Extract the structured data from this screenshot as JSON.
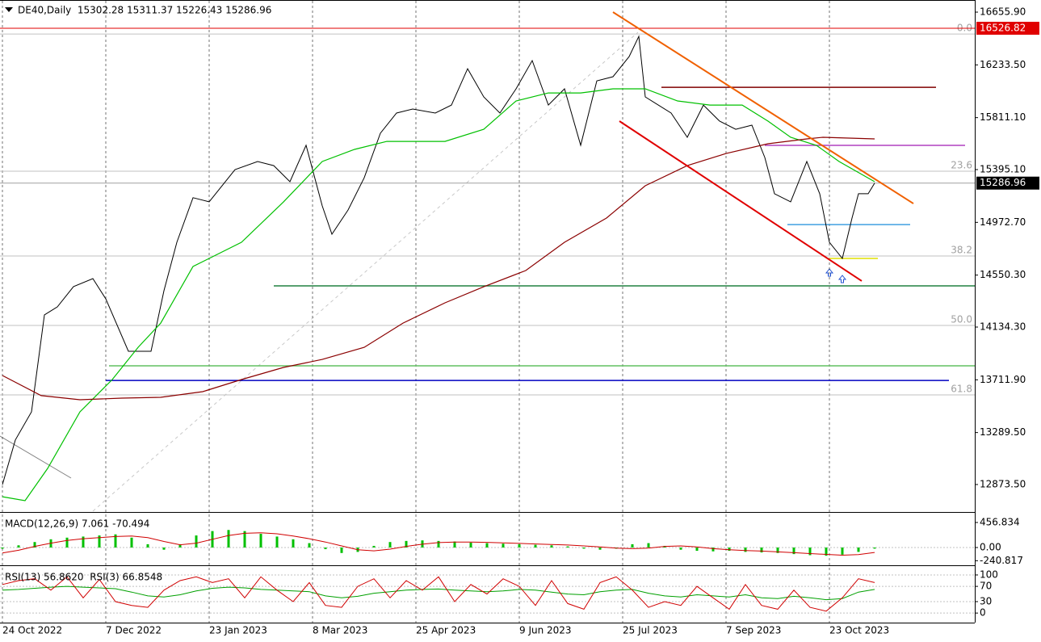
{
  "chart_data": [
    {
      "type": "line",
      "title": "DE40,Daily  15302.28 15311.37 15226.43 15286.96",
      "xlim": [
        0,
        301
      ],
      "xticks": [
        {
          "value": 0,
          "label": "24 Oct 2022"
        },
        {
          "value": 32,
          "label": "7 Dec 2022"
        },
        {
          "value": 64,
          "label": "23 Jan 2023"
        },
        {
          "value": 96,
          "label": "8 Mar 2023"
        },
        {
          "value": 128,
          "label": "25 Apr 2023"
        },
        {
          "value": 160,
          "label": "9 Jun 2023"
        },
        {
          "value": 192,
          "label": "25 Jul 2023"
        },
        {
          "value": 224,
          "label": "7 Sep 2023"
        },
        {
          "value": 256,
          "label": "23 Oct 2023"
        }
      ],
      "ylim": [
        12660,
        16753
      ],
      "yticks": [
        {
          "value": 16655.9,
          "label": "16655.90"
        },
        {
          "value": 16233.5,
          "label": "16233.50"
        },
        {
          "value": 15811.1,
          "label": "15811.10"
        },
        {
          "value": 15395.1,
          "label": "15395.10"
        },
        {
          "value": 14972.7,
          "label": "14972.70"
        },
        {
          "value": 14550.3,
          "label": "14550.30"
        },
        {
          "value": 14134.3,
          "label": "14134.30"
        },
        {
          "value": 13711.9,
          "label": "13711.90"
        },
        {
          "value": 13289.5,
          "label": "13289.50"
        },
        {
          "value": 12873.5,
          "label": "12873.50"
        }
      ],
      "series": [
        {
          "color": "#000000",
          "x": [
            0,
            4,
            9,
            13,
            17,
            22,
            28,
            32,
            39,
            46,
            50,
            54,
            59,
            64,
            72,
            79,
            84,
            89,
            94,
            99,
            102,
            107,
            112,
            117,
            122,
            127,
            134,
            139,
            144,
            149,
            154,
            159,
            164,
            169,
            174,
            179,
            184,
            189,
            194,
            197,
            199,
            207,
            212,
            217,
            222,
            227,
            232,
            236,
            239,
            244,
            249,
            253,
            256,
            260,
            263,
            265,
            268,
            270
          ],
          "values": [
            12873,
            13230,
            13455,
            14232,
            14296,
            14458,
            14522,
            14360,
            13940,
            13940,
            14425,
            14813,
            15170,
            15137,
            15395,
            15460,
            15427,
            15298,
            15590,
            15105,
            14878,
            15072,
            15330,
            15686,
            15848,
            15880,
            15848,
            15912,
            16203,
            15977,
            15848,
            16042,
            16268,
            15912,
            16042,
            15590,
            16106,
            16139,
            16300,
            16462,
            15977,
            15848,
            15654,
            15912,
            15783,
            15718,
            15751,
            15492,
            15202,
            15137,
            15460,
            15202,
            14813,
            14684,
            15007,
            15202,
            15202,
            15287
          ]
        },
        {
          "color": "#00c000",
          "x": [
            0,
            7,
            14,
            24,
            34,
            42,
            49,
            59,
            74,
            87,
            99,
            109,
            119,
            137,
            149,
            159,
            169,
            179,
            189,
            199,
            209,
            219,
            229,
            237,
            244,
            252,
            259,
            270
          ],
          "values": [
            12776,
            12744,
            13003,
            13455,
            13714,
            13972,
            14166,
            14619,
            14813,
            15136,
            15460,
            15557,
            15621,
            15621,
            15718,
            15945,
            16009,
            16009,
            16042,
            16042,
            15945,
            15912,
            15912,
            15783,
            15654,
            15589,
            15460,
            15298
          ]
        },
        {
          "color": "#8b0000",
          "x": [
            0,
            12,
            24,
            37,
            49,
            62,
            74,
            87,
            99,
            112,
            124,
            137,
            149,
            162,
            174,
            187,
            199,
            212,
            224,
            237,
            249,
            254,
            270
          ],
          "values": [
            13746,
            13585,
            13552,
            13565,
            13572,
            13617,
            13714,
            13811,
            13875,
            13972,
            14166,
            14328,
            14457,
            14587,
            14813,
            15007,
            15266,
            15427,
            15524,
            15602,
            15641,
            15654,
            15641
          ]
        }
      ],
      "hlines": [
        {
          "value": 16526.82,
          "color": "#e00000",
          "box": "#e00000"
        },
        {
          "value": 15286.96,
          "color": "#a0a0a0",
          "box": "#000000"
        },
        {
          "value": 16054,
          "color": "#800000",
          "from": 204,
          "to": 289
        },
        {
          "value": 15589,
          "color": "#b040c0",
          "from": 236,
          "to": 298
        },
        {
          "value": 14955,
          "color": "#40a0e0",
          "from": 243,
          "to": 281
        },
        {
          "value": 14684,
          "color": "#e0e000",
          "from": 256,
          "to": 271
        },
        {
          "value": 14464,
          "color": "#208040",
          "from": 84,
          "to": 301
        },
        {
          "value": 13824,
          "color": "#60c060",
          "from": 33,
          "to": 301
        },
        {
          "value": 13707,
          "color": "#0000c0",
          "from": 32,
          "to": 293
        }
      ],
      "fibo": [
        {
          "label": "0.0",
          "value": 16481
        },
        {
          "label": "23.6",
          "value": 15382
        },
        {
          "label": "38.2",
          "value": 14703
        },
        {
          "label": "50.0",
          "value": 14147
        },
        {
          "label": "61.8",
          "value": 13591
        }
      ],
      "trendlines": [
        {
          "color": "#f06000",
          "points": [
            [
              189,
              16656
            ],
            [
              282,
              15123
            ]
          ]
        },
        {
          "color": "#e00000",
          "points": [
            [
              191,
              15783
            ],
            [
              266,
              14503
            ]
          ]
        }
      ]
    },
    {
      "type": "macd",
      "title": "MACD(12,26,9) 7.061 -70.494",
      "ylim": [
        -280,
        619
      ],
      "yticks": [
        {
          "value": 456.834,
          "label": "456.834"
        },
        {
          "value": 0,
          "label": "0.00"
        },
        {
          "value": -240.817,
          "label": "-240.817"
        }
      ],
      "x": [
        0,
        5,
        10,
        15,
        20,
        25,
        30,
        35,
        40,
        45,
        50,
        55,
        60,
        65,
        70,
        75,
        80,
        85,
        90,
        95,
        100,
        105,
        110,
        115,
        120,
        125,
        130,
        135,
        140,
        145,
        150,
        155,
        160,
        165,
        170,
        175,
        180,
        185,
        190,
        195,
        200,
        205,
        210,
        215,
        220,
        225,
        230,
        235,
        240,
        245,
        250,
        255,
        260,
        265,
        270
      ],
      "series": [
        {
          "color": "#00c000",
          "values": [
            -20,
            40,
            100,
            150,
            180,
            200,
            220,
            240,
            180,
            60,
            -40,
            60,
            220,
            300,
            320,
            300,
            250,
            200,
            150,
            80,
            -30,
            -100,
            -80,
            30,
            100,
            120,
            130,
            120,
            110,
            90,
            80,
            70,
            60,
            50,
            40,
            20,
            -20,
            -40,
            -20,
            60,
            80,
            30,
            -40,
            -60,
            -70,
            -60,
            -80,
            -90,
            -100,
            -120,
            -140,
            -150,
            -130,
            -80,
            -20
          ]
        },
        {
          "color": "#d00000",
          "values": [
            -100,
            -50,
            20,
            80,
            130,
            160,
            180,
            200,
            210,
            180,
            110,
            50,
            80,
            150,
            220,
            260,
            270,
            250,
            210,
            160,
            100,
            30,
            -40,
            -60,
            -30,
            20,
            60,
            90,
            100,
            100,
            95,
            85,
            75,
            65,
            55,
            45,
            30,
            10,
            -10,
            -20,
            -10,
            20,
            30,
            10,
            -20,
            -40,
            -55,
            -65,
            -80,
            -95,
            -110,
            -125,
            -140,
            -130,
            -90
          ]
        }
      ]
    },
    {
      "type": "rsi",
      "title": "RSI(13) 56.8620  RSI(3) 66.8548",
      "ylim": [
        -23,
        119
      ],
      "yticks": [
        100,
        70,
        30,
        0
      ],
      "x": [
        0,
        5,
        10,
        15,
        20,
        25,
        30,
        35,
        40,
        45,
        50,
        55,
        60,
        65,
        70,
        75,
        80,
        85,
        90,
        95,
        100,
        105,
        110,
        115,
        120,
        125,
        130,
        135,
        140,
        145,
        150,
        155,
        160,
        165,
        170,
        175,
        180,
        185,
        190,
        195,
        200,
        205,
        210,
        215,
        220,
        225,
        230,
        235,
        240,
        245,
        250,
        255,
        260,
        265,
        270
      ],
      "series": [
        {
          "color": "#00a000",
          "values": [
            60,
            62,
            65,
            68,
            70,
            68,
            66,
            64,
            55,
            45,
            42,
            48,
            58,
            65,
            68,
            66,
            62,
            60,
            58,
            56,
            45,
            40,
            44,
            52,
            56,
            60,
            62,
            63,
            60,
            58,
            56,
            58,
            62,
            60,
            55,
            50,
            48,
            56,
            60,
            62,
            52,
            45,
            42,
            48,
            45,
            42,
            48,
            40,
            38,
            44,
            40,
            35,
            38,
            55,
            62
          ]
        },
        {
          "color": "#d00000",
          "values": [
            75,
            85,
            90,
            60,
            95,
            40,
            88,
            30,
            20,
            15,
            60,
            85,
            95,
            80,
            90,
            40,
            95,
            60,
            30,
            80,
            20,
            15,
            70,
            90,
            40,
            85,
            60,
            95,
            30,
            75,
            50,
            90,
            70,
            20,
            85,
            25,
            10,
            80,
            95,
            60,
            15,
            30,
            20,
            70,
            40,
            10,
            75,
            20,
            10,
            60,
            15,
            5,
            40,
            90,
            80
          ]
        }
      ]
    }
  ]
}
